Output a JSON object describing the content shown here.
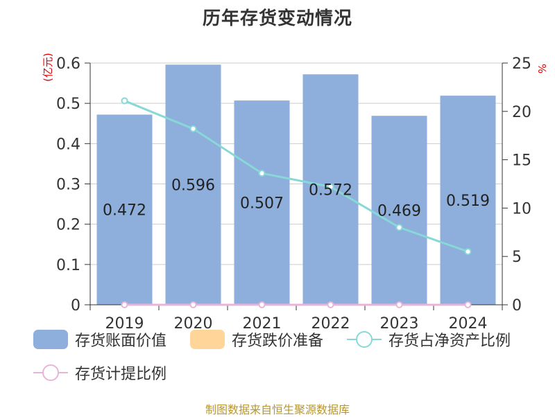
{
  "title": "历年存货变动情况",
  "source_note": "制图数据来自恒生聚源数据库",
  "colors": {
    "bar": "#8eaedb",
    "provision": "#ffd59a",
    "ratio_line": "#88d8d8",
    "provision_ratio_line": "#e8b4d8",
    "unit_text": "#e00000",
    "source_text": "#b8962e"
  },
  "chart_data": {
    "type": "bar",
    "categories": [
      "2019",
      "2020",
      "2021",
      "2022",
      "2023",
      "2024"
    ],
    "left_axis": {
      "unit": "(亿元)",
      "ylim": [
        0,
        0.6
      ],
      "ticks": [
        "0",
        "0.1",
        "0.2",
        "0.3",
        "0.4",
        "0.5",
        "0.6"
      ]
    },
    "right_axis": {
      "unit": "%",
      "ylim": [
        0,
        25
      ],
      "ticks": [
        "0",
        "5",
        "10",
        "15",
        "20",
        "25"
      ]
    },
    "grid": true,
    "legend_position": "bottom",
    "series": [
      {
        "name": "存货账面价值",
        "type": "bar",
        "axis": "left",
        "values": [
          0.472,
          0.596,
          0.507,
          0.572,
          0.469,
          0.519
        ],
        "labels": [
          "0.472",
          "0.596",
          "0.507",
          "0.572",
          "0.469",
          "0.519"
        ]
      },
      {
        "name": "存货跌价准备",
        "type": "bar",
        "axis": "left",
        "values": [
          0,
          0,
          0,
          0,
          0,
          0
        ]
      },
      {
        "name": "存货占净资产比例",
        "type": "line",
        "axis": "right",
        "values": [
          21.1,
          18.2,
          13.6,
          12.2,
          8.0,
          5.5
        ]
      },
      {
        "name": "存货计提比例",
        "type": "line",
        "axis": "right",
        "values": [
          0,
          0,
          0,
          0,
          0,
          0
        ]
      }
    ]
  }
}
